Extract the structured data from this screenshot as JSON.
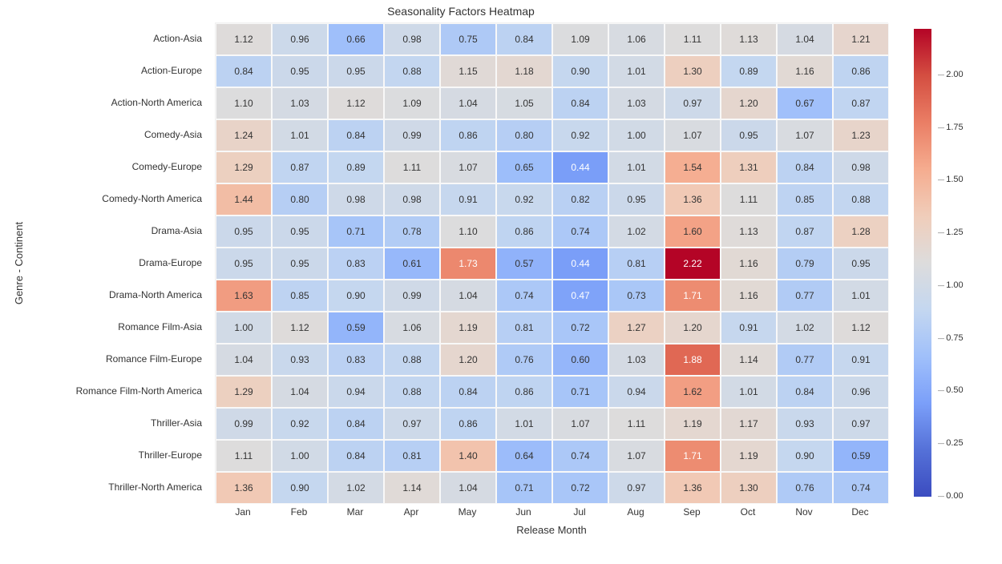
{
  "chart": {
    "title": "Seasonality Factors Heatmap",
    "xaxis_title": "Release Month",
    "yaxis_title": "Genre - Continent",
    "type": "heatmap",
    "background_color": "#ffffff",
    "cell_border_color": "#f8f8f8",
    "text_color": "#333333",
    "font_family": "sans-serif",
    "title_fontsize": 14,
    "label_fontsize": 12,
    "axis_title_fontsize": 13,
    "vmin": 0.0,
    "vmax": 2.22,
    "light_text_threshold_low": 0.52,
    "light_text_threshold_high": 1.7,
    "x_labels": [
      "Jan",
      "Feb",
      "Mar",
      "Apr",
      "May",
      "Jun",
      "Jul",
      "Aug",
      "Sep",
      "Oct",
      "Nov",
      "Dec"
    ],
    "y_labels": [
      "Action-Asia",
      "Action-Europe",
      "Action-North America",
      "Comedy-Asia",
      "Comedy-Europe",
      "Comedy-North America",
      "Drama-Asia",
      "Drama-Europe",
      "Drama-North America",
      "Romance Film-Asia",
      "Romance Film-Europe",
      "Romance Film-North America",
      "Thriller-Asia",
      "Thriller-Europe",
      "Thriller-North America"
    ],
    "values": [
      [
        1.12,
        0.96,
        0.66,
        0.98,
        0.75,
        0.84,
        1.09,
        1.06,
        1.11,
        1.13,
        1.04,
        1.21
      ],
      [
        0.84,
        0.95,
        0.95,
        0.88,
        1.15,
        1.18,
        0.9,
        1.01,
        1.3,
        0.89,
        1.16,
        0.86
      ],
      [
        1.1,
        1.03,
        1.12,
        1.09,
        1.04,
        1.05,
        0.84,
        1.03,
        0.97,
        1.2,
        0.67,
        0.87
      ],
      [
        1.24,
        1.01,
        0.84,
        0.99,
        0.86,
        0.8,
        0.92,
        1.0,
        1.07,
        0.95,
        1.07,
        1.23
      ],
      [
        1.29,
        0.87,
        0.89,
        1.11,
        1.07,
        0.65,
        0.44,
        1.01,
        1.54,
        1.31,
        0.84,
        0.98
      ],
      [
        1.44,
        0.8,
        0.98,
        0.98,
        0.91,
        0.92,
        0.82,
        0.95,
        1.36,
        1.11,
        0.85,
        0.88
      ],
      [
        0.95,
        0.95,
        0.71,
        0.78,
        1.1,
        0.86,
        0.74,
        1.02,
        1.6,
        1.13,
        0.87,
        1.28
      ],
      [
        0.95,
        0.95,
        0.83,
        0.61,
        1.73,
        0.57,
        0.44,
        0.81,
        2.22,
        1.16,
        0.79,
        0.95
      ],
      [
        1.63,
        0.85,
        0.9,
        0.99,
        1.04,
        0.74,
        0.47,
        0.73,
        1.71,
        1.16,
        0.77,
        1.01
      ],
      [
        1.0,
        1.12,
        0.59,
        1.06,
        1.19,
        0.81,
        0.72,
        1.27,
        1.2,
        0.91,
        1.02,
        1.12
      ],
      [
        1.04,
        0.93,
        0.83,
        0.88,
        1.2,
        0.76,
        0.6,
        1.03,
        1.88,
        1.14,
        0.77,
        0.91
      ],
      [
        1.29,
        1.04,
        0.94,
        0.88,
        0.84,
        0.86,
        0.71,
        0.94,
        1.62,
        1.01,
        0.84,
        0.96
      ],
      [
        0.99,
        0.92,
        0.84,
        0.97,
        0.86,
        1.01,
        1.07,
        1.11,
        1.19,
        1.17,
        0.93,
        0.97
      ],
      [
        1.11,
        1.0,
        0.84,
        0.81,
        1.4,
        0.64,
        0.74,
        1.07,
        1.71,
        1.19,
        0.9,
        0.59
      ],
      [
        1.36,
        0.9,
        1.02,
        1.14,
        1.04,
        0.71,
        0.72,
        0.97,
        1.36,
        1.3,
        0.76,
        0.74
      ]
    ],
    "colormap": {
      "name": "coolwarm",
      "stops": [
        {
          "t": 0.0,
          "color": "#3b4cc0"
        },
        {
          "t": 0.1,
          "color": "#5571d8"
        },
        {
          "t": 0.2,
          "color": "#7b9ff9"
        },
        {
          "t": 0.3,
          "color": "#a0c0fa"
        },
        {
          "t": 0.4,
          "color": "#c4d7f0"
        },
        {
          "t": 0.5,
          "color": "#dddcdc"
        },
        {
          "t": 0.6,
          "color": "#f0cdba"
        },
        {
          "t": 0.7,
          "color": "#f5ac8f"
        },
        {
          "t": 0.8,
          "color": "#ea7e65"
        },
        {
          "t": 0.9,
          "color": "#d44e41"
        },
        {
          "t": 1.0,
          "color": "#b40426"
        }
      ]
    },
    "colorbar_ticks": [
      0.0,
      0.25,
      0.5,
      0.75,
      1.0,
      1.25,
      1.5,
      1.75,
      2.0
    ]
  }
}
